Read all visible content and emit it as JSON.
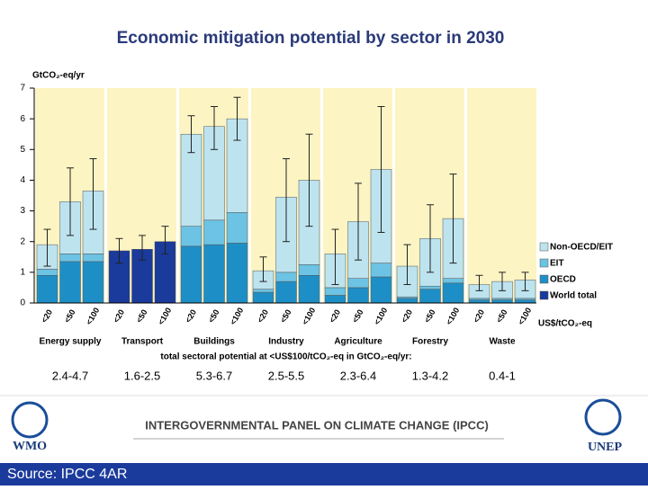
{
  "chart_data": {
    "type": "stacked_bar",
    "title": "Economic mitigation potential by sector in 2030",
    "y_label": "GtCO₂-eq/yr",
    "x_unit_label": "US$/tCO₂-eq",
    "sectors": [
      "Energy supply",
      "Transport",
      "Buildings",
      "Industry",
      "Agriculture",
      "Forestry",
      "Waste"
    ],
    "categories": [
      "<20",
      "<50",
      "<100",
      "<20",
      "<50",
      "<100",
      "<20",
      "<50",
      "<100",
      "<20",
      "<50",
      "<100",
      "<20",
      "<50",
      "<100",
      "<20",
      "<50",
      "<100",
      "<20",
      "<50",
      "<100"
    ],
    "series": [
      {
        "name": "Non-OECD/EIT",
        "color": "#bde3ef",
        "values": [
          0.8,
          1.7,
          2.05,
          null,
          null,
          null,
          3.0,
          3.05,
          3.05,
          0.6,
          2.45,
          2.75,
          1.1,
          1.85,
          3.05,
          1.0,
          1.55,
          1.95,
          0.45,
          0.55,
          0.6
        ]
      },
      {
        "name": "EIT",
        "color": "#6cc3e3",
        "values": [
          0.2,
          0.25,
          0.25,
          null,
          null,
          null,
          0.65,
          0.8,
          1.0,
          0.1,
          0.3,
          0.35,
          0.25,
          0.3,
          0.45,
          0.05,
          0.1,
          0.15,
          0.05,
          0.05,
          0.05
        ]
      },
      {
        "name": "OECD",
        "color": "#1e8fc6",
        "values": [
          0.9,
          1.35,
          1.35,
          null,
          null,
          null,
          1.85,
          1.9,
          1.95,
          0.35,
          0.7,
          0.9,
          0.25,
          0.5,
          0.85,
          0.15,
          0.45,
          0.65,
          0.1,
          0.1,
          0.1
        ]
      },
      {
        "name": "World total",
        "color": "#1a3a9c",
        "values": [
          null,
          null,
          null,
          1.7,
          1.75,
          2.0,
          null,
          null,
          null,
          null,
          null,
          null,
          null,
          null,
          null,
          null,
          null,
          null,
          null,
          null,
          null
        ]
      }
    ],
    "error_low": [
      1.2,
      2.2,
      2.4,
      1.3,
      1.4,
      1.6,
      4.9,
      5.0,
      5.3,
      0.7,
      2.0,
      2.5,
      0.6,
      1.4,
      2.3,
      0.6,
      1.0,
      1.3,
      0.4,
      0.4,
      0.4
    ],
    "error_high": [
      2.4,
      4.4,
      4.7,
      2.1,
      2.2,
      2.5,
      6.1,
      6.4,
      6.7,
      1.5,
      4.7,
      5.5,
      2.4,
      3.9,
      6.4,
      1.9,
      3.2,
      4.2,
      0.9,
      1.0,
      1.0
    ],
    "ylim": [
      0,
      7
    ],
    "yticks": [
      0,
      1,
      2,
      3,
      4,
      5,
      6,
      7
    ],
    "total_label": "total sectoral potential at <US$100/tCO₂-eq in GtCO₂-eq/yr:",
    "totals": [
      "2.4-4.7",
      "1.6-2.5",
      "5.3-6.7",
      "2.5-5.5",
      "2.3-6.4",
      "1.3-4.2",
      "0.4-1"
    ]
  },
  "footer": {
    "org": "INTERGOVERNMENTAL PANEL ON CLIMATE CHANGE (IPCC)",
    "left_logo": "WMO",
    "right_logo": "UNEP",
    "source": "Source: IPCC 4AR"
  }
}
